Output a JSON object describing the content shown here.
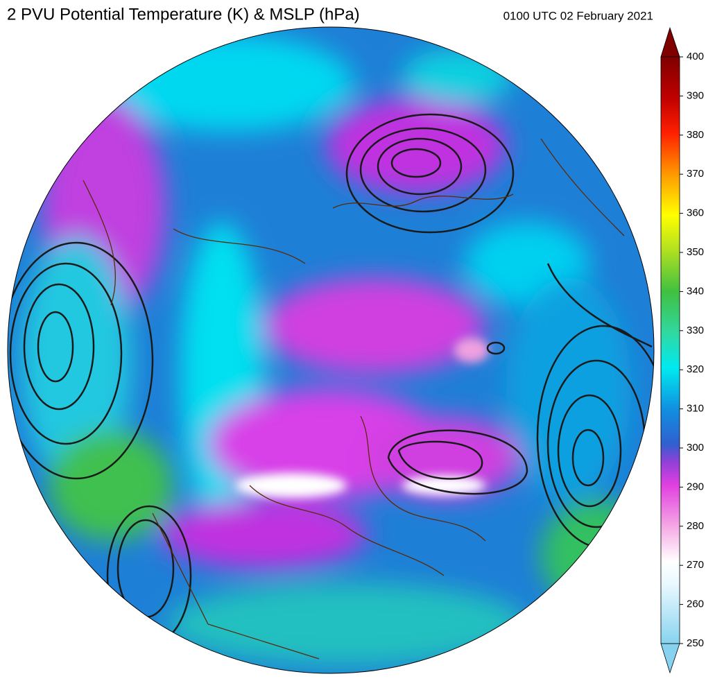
{
  "header": {
    "title": "2 PVU Potential Temperature (K) & MSLP (hPa)",
    "timestamp": "0100 UTC 02 February 2021"
  },
  "colorbar": {
    "lim": [
      250,
      400
    ],
    "ticks": [
      250,
      260,
      270,
      280,
      290,
      300,
      310,
      320,
      330,
      340,
      350,
      360,
      370,
      380,
      390,
      400
    ]
  }
}
